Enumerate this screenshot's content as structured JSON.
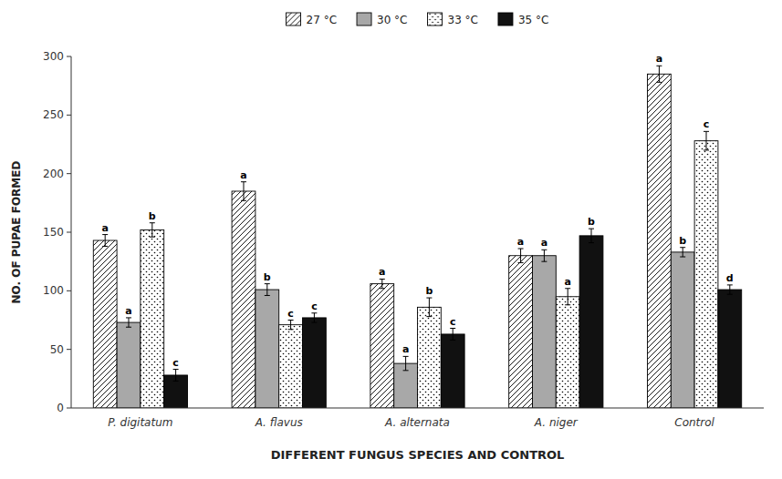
{
  "chart_data": {
    "type": "bar",
    "categories": [
      "P. digitatum",
      "A. flavus",
      "A. alternata",
      "A. niger",
      "Control"
    ],
    "series": [
      {
        "name": "27 °C",
        "color": "#ffffff",
        "values": [
          143,
          185,
          106,
          130,
          285
        ],
        "errors": [
          5,
          8,
          4,
          6,
          7
        ],
        "significance": [
          "a",
          "a",
          "a",
          "a",
          "a"
        ]
      },
      {
        "name": "30 °C",
        "color": "#a8a8a8",
        "values": [
          73,
          101,
          38,
          130,
          133
        ],
        "errors": [
          4,
          5,
          6,
          5,
          4
        ],
        "significance": [
          "a",
          "b",
          "a",
          "a",
          "b"
        ]
      },
      {
        "name": "33 °C",
        "color": "#ffffff",
        "values": [
          152,
          71,
          86,
          95,
          228
        ],
        "errors": [
          6,
          4,
          8,
          7,
          8
        ],
        "significance": [
          "b",
          "c",
          "b",
          "a",
          "c"
        ]
      },
      {
        "name": "35 °C",
        "color": "#111111",
        "values": [
          28,
          77,
          63,
          147,
          101
        ],
        "errors": [
          5,
          4,
          5,
          6,
          4
        ],
        "significance": [
          "c",
          "c",
          "c",
          "b",
          "d"
        ]
      }
    ],
    "ylabel": "NO. OF PUPAE FORMED",
    "xlabel": "DIFFERENT FUNGUS SPECIES AND CONTROL",
    "ylim": [
      0,
      300
    ],
    "yticks": [
      0,
      50,
      100,
      150,
      200,
      250,
      300
    ],
    "grid": false,
    "legend": "top"
  }
}
